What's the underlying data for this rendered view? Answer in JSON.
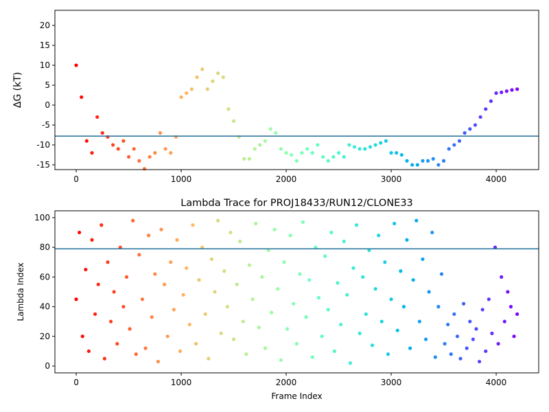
{
  "chart_data": [
    {
      "type": "scatter",
      "ylabel": "ΔG (kT)",
      "colormap": "rainbow_r",
      "xlim": [
        -203,
        4405
      ],
      "ylim": [
        -16.2,
        23.8
      ],
      "xticks": [
        0,
        1000,
        2000,
        3000,
        4000
      ],
      "yticks": [
        -15,
        -10,
        -5,
        0,
        5,
        10,
        15,
        20
      ],
      "hline": -7.8,
      "hline_color": "#1f6f9a",
      "x": [
        0,
        50,
        100,
        150,
        200,
        250,
        300,
        350,
        400,
        450,
        500,
        550,
        600,
        650,
        700,
        750,
        800,
        850,
        900,
        950,
        1000,
        1050,
        1100,
        1150,
        1200,
        1250,
        1300,
        1350,
        1400,
        1450,
        1500,
        1550,
        1600,
        1650,
        1700,
        1750,
        1800,
        1850,
        1900,
        1950,
        2000,
        2050,
        2100,
        2150,
        2200,
        2250,
        2300,
        2350,
        2400,
        2450,
        2500,
        2550,
        2600,
        2650,
        2700,
        2750,
        2800,
        2850,
        2900,
        2950,
        3000,
        3050,
        3100,
        3150,
        3200,
        3250,
        3300,
        3350,
        3400,
        3450,
        3500,
        3550,
        3600,
        3650,
        3700,
        3750,
        3800,
        3850,
        3900,
        3950,
        4000,
        4050,
        4100,
        4150,
        4200
      ],
      "values": [
        10,
        2,
        -9,
        -12,
        -3,
        -7,
        -8,
        -10,
        -11,
        -9,
        -13,
        -11,
        -14,
        -16,
        -13,
        -12,
        -7,
        -11,
        -12,
        -8,
        2,
        3,
        4,
        7,
        9,
        4,
        6,
        8,
        7,
        -1,
        -4,
        -8,
        -13.5,
        -13.5,
        -11,
        -10,
        -9,
        -6,
        -7,
        -11,
        -12,
        -12.5,
        -14,
        -12,
        -11,
        -12,
        -10,
        -13,
        -14,
        -13,
        -12,
        -13,
        -10,
        -10.5,
        -11,
        -11,
        -10.5,
        -10,
        -9.5,
        -9,
        -12,
        -12,
        -12.5,
        -14,
        -15,
        -15,
        -14,
        -14,
        -13.5,
        -15,
        -14,
        -11,
        -10,
        -9,
        -7,
        -6,
        -5,
        -3,
        -1,
        1,
        3,
        3.2,
        3.5,
        3.8,
        4
      ]
    },
    {
      "type": "scatter",
      "title": "Lambda Trace for PROJ18433/RUN12/CLONE33",
      "xlabel": "Frame Index",
      "ylabel": "Lambda Index",
      "colormap": "rainbow_r",
      "xlim": [
        -203,
        4405
      ],
      "ylim": [
        -4.6,
        104.6
      ],
      "xticks": [
        0,
        1000,
        2000,
        3000,
        4000
      ],
      "yticks": [
        0,
        20,
        40,
        60,
        80,
        100
      ],
      "hline": 79,
      "hline_color": "#1f6f9a",
      "x": [
        0,
        30,
        60,
        90,
        120,
        150,
        180,
        210,
        240,
        270,
        300,
        330,
        360,
        390,
        420,
        450,
        480,
        510,
        540,
        570,
        600,
        630,
        660,
        690,
        720,
        750,
        780,
        810,
        840,
        870,
        900,
        930,
        960,
        990,
        1020,
        1050,
        1080,
        1110,
        1140,
        1170,
        1200,
        1230,
        1260,
        1290,
        1320,
        1350,
        1380,
        1410,
        1440,
        1470,
        1500,
        1530,
        1560,
        1590,
        1620,
        1650,
        1680,
        1710,
        1740,
        1770,
        1800,
        1830,
        1860,
        1890,
        1920,
        1950,
        1980,
        2010,
        2040,
        2070,
        2100,
        2130,
        2160,
        2190,
        2220,
        2250,
        2280,
        2310,
        2340,
        2370,
        2400,
        2430,
        2460,
        2490,
        2520,
        2550,
        2580,
        2610,
        2640,
        2670,
        2700,
        2730,
        2760,
        2790,
        2820,
        2850,
        2880,
        2910,
        2940,
        2970,
        3000,
        3030,
        3060,
        3090,
        3120,
        3150,
        3180,
        3210,
        3240,
        3270,
        3300,
        3330,
        3360,
        3390,
        3420,
        3450,
        3480,
        3510,
        3540,
        3570,
        3600,
        3630,
        3660,
        3690,
        3720,
        3750,
        3780,
        3810,
        3840,
        3870,
        3900,
        3930,
        3960,
        3990,
        4020,
        4050,
        4080,
        4110,
        4140,
        4170,
        4200
      ],
      "values": [
        45,
        90,
        20,
        65,
        10,
        85,
        35,
        55,
        95,
        5,
        70,
        30,
        50,
        15,
        80,
        40,
        60,
        25,
        98,
        8,
        75,
        45,
        12,
        88,
        33,
        62,
        3,
        92,
        55,
        20,
        70,
        38,
        85,
        10,
        48,
        66,
        28,
        95,
        15,
        58,
        80,
        35,
        5,
        72,
        50,
        98,
        22,
        64,
        40,
        90,
        18,
        55,
        84,
        30,
        8,
        68,
        45,
        96,
        26,
        60,
        12,
        78,
        36,
        92,
        52,
        4,
        70,
        25,
        88,
        42,
        15,
        62,
        97,
        33,
        58,
        6,
        80,
        46,
        20,
        74,
        38,
        90,
        10,
        56,
        28,
        84,
        48,
        2,
        66,
        95,
        22,
        60,
        35,
        78,
        14,
        52,
        88,
        30,
        70,
        8,
        45,
        96,
        24,
        64,
        40,
        85,
        12,
        58,
        98,
        30,
        72,
        18,
        50,
        90,
        6,
        40,
        62,
        15,
        28,
        8,
        35,
        20,
        5,
        42,
        12,
        30,
        18,
        25,
        3,
        38,
        10,
        45,
        22,
        80,
        15,
        60,
        30,
        50,
        40,
        20,
        35
      ]
    }
  ]
}
